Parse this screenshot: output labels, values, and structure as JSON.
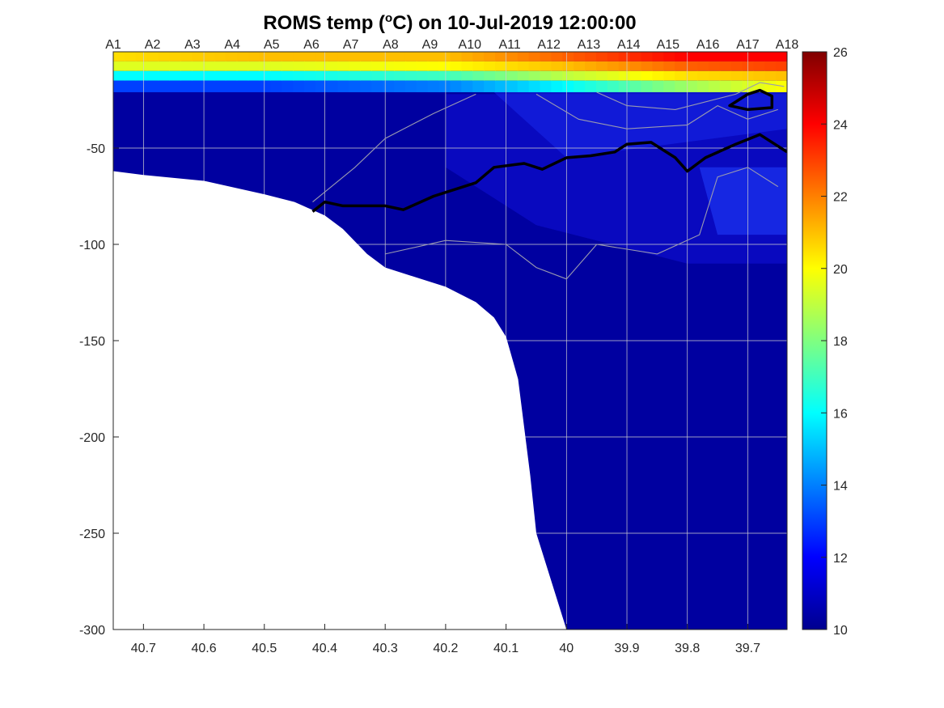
{
  "chart_data": {
    "type": "heatmap",
    "title": "ROMS temp (",
    "title_sup": "o",
    "title_suffix": "C) on 10-Jul-2019 12:00:00",
    "xlabel": "",
    "ylabel": "",
    "xlim": [
      40.75,
      39.635
    ],
    "ylim": [
      -300,
      0
    ],
    "x_ticks": [
      40.7,
      40.6,
      40.5,
      40.4,
      40.3,
      40.2,
      40.1,
      40,
      39.9,
      39.8,
      39.7
    ],
    "x_tick_labels": [
      "40.7",
      "40.6",
      "40.5",
      "40.4",
      "40.3",
      "40.2",
      "40.1",
      "40",
      "39.9",
      "39.8",
      "39.7"
    ],
    "y_ticks": [
      -50,
      -100,
      -150,
      -200,
      -250,
      -300
    ],
    "y_tick_labels": [
      "-50",
      "-100",
      "-150",
      "-200",
      "-250",
      "-300"
    ],
    "grid": true,
    "stations": [
      {
        "name": "A1",
        "x": 40.75
      },
      {
        "name": "A2",
        "x": 40.685
      },
      {
        "name": "A3",
        "x": 40.619
      },
      {
        "name": "A4",
        "x": 40.553
      },
      {
        "name": "A5",
        "x": 40.488
      },
      {
        "name": "A6",
        "x": 40.422
      },
      {
        "name": "A7",
        "x": 40.357
      },
      {
        "name": "A8",
        "x": 40.291
      },
      {
        "name": "A9",
        "x": 40.226
      },
      {
        "name": "A10",
        "x": 40.16
      },
      {
        "name": "A11",
        "x": 40.094
      },
      {
        "name": "A12",
        "x": 40.029
      },
      {
        "name": "A13",
        "x": 39.963
      },
      {
        "name": "A14",
        "x": 39.897
      },
      {
        "name": "A15",
        "x": 39.832
      },
      {
        "name": "A16",
        "x": 39.766
      },
      {
        "name": "A17",
        "x": 39.7
      },
      {
        "name": "A18",
        "x": 39.635
      }
    ],
    "bathymetry": [
      [
        40.75,
        -62
      ],
      [
        40.7,
        -64
      ],
      [
        40.6,
        -67
      ],
      [
        40.5,
        -74
      ],
      [
        40.45,
        -78
      ],
      [
        40.4,
        -85
      ],
      [
        40.37,
        -92
      ],
      [
        40.33,
        -105
      ],
      [
        40.3,
        -112
      ],
      [
        40.25,
        -117
      ],
      [
        40.2,
        -122
      ],
      [
        40.15,
        -130
      ],
      [
        40.12,
        -138
      ],
      [
        40.1,
        -148
      ],
      [
        40.08,
        -170
      ],
      [
        40.06,
        -220
      ],
      [
        40.05,
        -250
      ],
      [
        40.0,
        -300
      ]
    ],
    "colorbar": {
      "min": 10,
      "max": 26,
      "ticks": [
        10,
        12,
        14,
        16,
        18,
        20,
        22,
        24,
        26
      ],
      "tick_labels": [
        "10",
        "12",
        "14",
        "16",
        "18",
        "20",
        "22",
        "24",
        "26"
      ],
      "colormap": "jet"
    },
    "surface_layer": [
      {
        "x": 40.75,
        "t0": 20.5,
        "t5": 19.5,
        "t10": 16.0,
        "t15": 13.0
      },
      {
        "x": 40.5,
        "t0": 21.0,
        "t5": 19.5,
        "t10": 16.0,
        "t15": 13.0
      },
      {
        "x": 40.2,
        "t0": 21.0,
        "t5": 20.0,
        "t10": 17.0,
        "t15": 14.0
      },
      {
        "x": 40.0,
        "t0": 22.5,
        "t5": 21.0,
        "t10": 19.0,
        "t15": 16.0
      },
      {
        "x": 39.8,
        "t0": 24.0,
        "t5": 22.5,
        "t10": 20.5,
        "t15": 18.5
      },
      {
        "x": 39.635,
        "t0": 24.0,
        "t5": 23.0,
        "t10": 21.0,
        "t15": 20.0
      }
    ],
    "contours": [
      {
        "level": 12,
        "color": "#000000",
        "points": [
          [
            40.42,
            -83
          ],
          [
            40.4,
            -78
          ],
          [
            40.37,
            -80
          ],
          [
            40.3,
            -80
          ],
          [
            40.27,
            -82
          ],
          [
            40.22,
            -75
          ],
          [
            40.15,
            -68
          ],
          [
            40.12,
            -60
          ],
          [
            40.07,
            -58
          ],
          [
            40.04,
            -61
          ],
          [
            40.0,
            -55
          ],
          [
            39.96,
            -54
          ],
          [
            39.92,
            -52
          ],
          [
            39.9,
            -48
          ],
          [
            39.86,
            -47
          ],
          [
            39.82,
            -55
          ],
          [
            39.8,
            -62
          ],
          [
            39.77,
            -55
          ],
          [
            39.72,
            -48
          ],
          [
            39.68,
            -43
          ],
          [
            39.635,
            -52
          ]
        ]
      },
      {
        "level": 18,
        "color": "#000000",
        "points": [
          [
            39.72,
            -26
          ],
          [
            39.7,
            -22
          ],
          [
            39.68,
            -20
          ],
          [
            39.66,
            -23
          ],
          [
            39.66,
            -29
          ],
          [
            39.7,
            -30
          ],
          [
            39.73,
            -28
          ],
          [
            39.72,
            -26
          ]
        ]
      }
    ]
  }
}
